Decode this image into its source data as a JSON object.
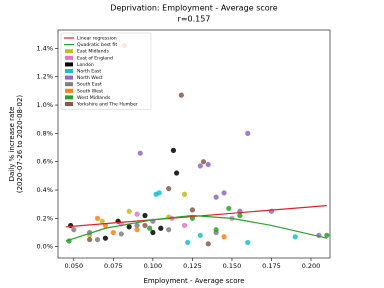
{
  "chart_data": {
    "type": "scatter",
    "title": "Deprivation: Employment - Average score",
    "subtitle": "r=0.157",
    "xlabel": "Employment - Average score",
    "ylabel": [
      "Daily % increase rate",
      "(2020-07-26 to 2020-08-02)"
    ],
    "xlim": [
      0.04,
      0.212
    ],
    "ylim": [
      -0.08,
      1.53
    ],
    "xticks": [
      {
        "value": 0.05,
        "label": "0.050"
      },
      {
        "value": 0.075,
        "label": "0.075"
      },
      {
        "value": 0.1,
        "label": "0.100"
      },
      {
        "value": 0.125,
        "label": "0.125"
      },
      {
        "value": 0.15,
        "label": "0.150"
      },
      {
        "value": 0.175,
        "label": "0.175"
      },
      {
        "value": 0.2,
        "label": "0.200"
      }
    ],
    "yticks": [
      {
        "value": 0,
        "label": "0.0%"
      },
      {
        "value": 0.2,
        "label": "0.2%"
      },
      {
        "value": 0.4,
        "label": "0.4%"
      },
      {
        "value": 0.6,
        "label": "0.6%"
      },
      {
        "value": 0.8,
        "label": "0.8%"
      },
      {
        "value": 1.0,
        "label": "1.0%"
      },
      {
        "value": 1.2,
        "label": "1.2%"
      },
      {
        "value": 1.4,
        "label": "1.4%"
      }
    ],
    "legend": "upper left",
    "lines": [
      {
        "name": "Linear regression",
        "color": "#d62728",
        "x": [
          0.045,
          0.21
        ],
        "values": [
          0.14,
          0.29
        ]
      },
      {
        "name": "Quadratic best fit",
        "color": "#2ca02c",
        "x": [
          0.045,
          0.07,
          0.1,
          0.125,
          0.15,
          0.175,
          0.21
        ],
        "values": [
          0.04,
          0.13,
          0.19,
          0.22,
          0.2,
          0.15,
          0.06
        ]
      }
    ],
    "series": [
      {
        "name": "East Midlands",
        "color": "#bcbd22",
        "x": [
          0.12,
          0.068,
          0.085,
          0.11,
          0.06
        ],
        "values": [
          0.37,
          0.18,
          0.25,
          0.21,
          0.08
        ]
      },
      {
        "name": "East of England",
        "color": "#e377c2",
        "x": [
          0.112,
          0.08,
          0.09,
          0.15,
          0.12
        ],
        "values": [
          0.2,
          0.16,
          0.23,
          0.2,
          0.15
        ]
      },
      {
        "name": "London",
        "color": "#000000",
        "x": [
          0.113,
          0.115,
          0.048,
          0.07,
          0.085,
          0.1,
          0.095,
          0.105,
          0.078
        ],
        "values": [
          0.68,
          0.52,
          0.15,
          0.06,
          0.14,
          0.1,
          0.22,
          0.13,
          0.18
        ]
      },
      {
        "name": "North East",
        "color": "#17becf",
        "x": [
          0.102,
          0.104,
          0.122,
          0.19,
          0.16,
          0.13
        ],
        "values": [
          0.37,
          0.38,
          0.03,
          0.07,
          0.03,
          0.08
        ]
      },
      {
        "name": "North West",
        "color": "#9467bd",
        "x": [
          0.092,
          0.16,
          0.135,
          0.13,
          0.145,
          0.14,
          0.205,
          0.175,
          0.155,
          0.1
        ],
        "values": [
          0.66,
          0.8,
          0.58,
          0.57,
          0.38,
          0.35,
          0.08,
          0.25,
          0.25,
          0.18
        ]
      },
      {
        "name": "South East",
        "color": "#7f7f7f",
        "x": [
          0.05,
          0.06,
          0.065,
          0.09,
          0.11,
          0.14,
          0.08
        ],
        "values": [
          0.12,
          0.1,
          0.05,
          0.15,
          0.12,
          0.1,
          0.09
        ]
      },
      {
        "name": "South West",
        "color": "#ff7f0e",
        "x": [
          0.082,
          0.065,
          0.07,
          0.09,
          0.145,
          0.075
        ],
        "values": [
          1.42,
          0.2,
          0.15,
          0.12,
          0.07,
          0.1
        ]
      },
      {
        "name": "West Midlands",
        "color": "#2ca02c",
        "x": [
          0.098,
          0.125,
          0.148,
          0.155,
          0.14,
          0.21,
          0.047
        ],
        "values": [
          0.13,
          0.2,
          0.27,
          0.22,
          0.12,
          0.08,
          0.04
        ]
      },
      {
        "name": "Yorkshire and The Humber",
        "color": "#8c564b",
        "x": [
          0.118,
          0.132,
          0.11,
          0.125,
          0.135,
          0.095,
          0.06
        ],
        "values": [
          1.07,
          0.6,
          0.41,
          0.26,
          0.02,
          0.15,
          0.05
        ]
      }
    ]
  }
}
